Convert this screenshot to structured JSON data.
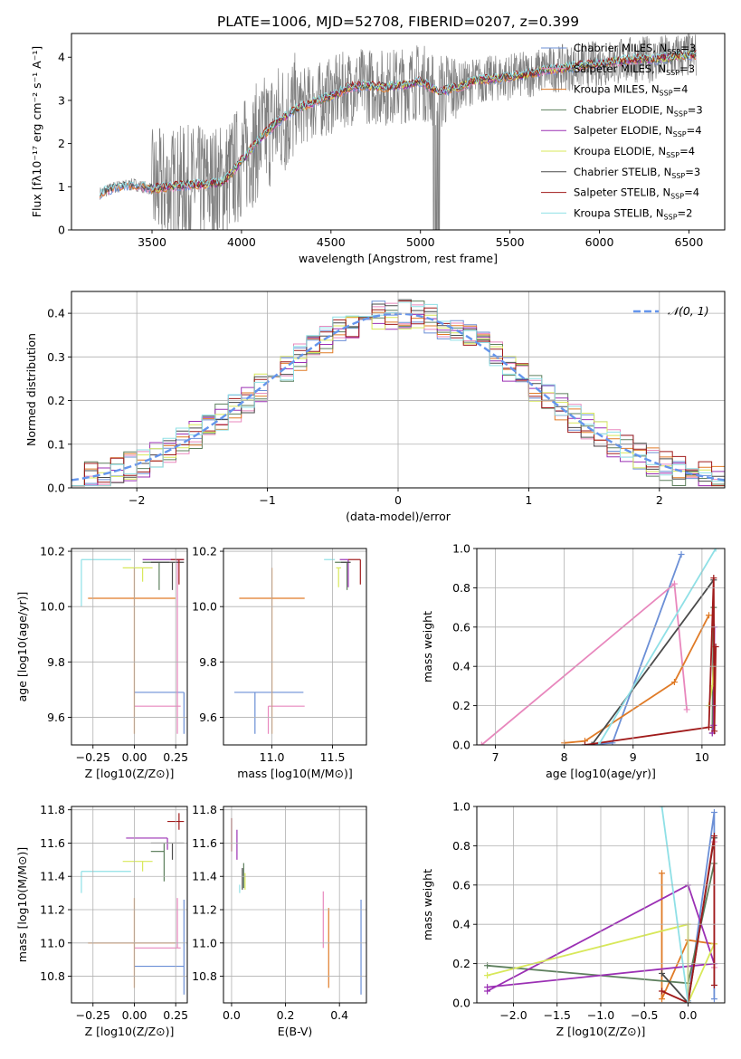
{
  "figure": {
    "title": "PLATE=1006, MJD=52708, FIBERID=0207, z=0.399"
  },
  "colors": {
    "Chabrier MILES": "#6b8fd6",
    "Salpeter MILES": "#e887bd",
    "Kroupa MILES": "#e07b27",
    "Chabrier ELODIE": "#5d7f5d",
    "Salpeter ELODIE": "#9b30b4",
    "Kroupa ELODIE": "#d8e85a",
    "Chabrier STELIB": "#4a4a4a",
    "Salpeter STELIB": "#a01a1a",
    "Kroupa STELIB": "#8fe0e6",
    "data": "#808080",
    "gaussian": "#6495ed"
  },
  "chart_data": [
    {
      "id": "spectrum",
      "type": "line",
      "title": "PLATE=1006, MJD=52708, FIBERID=0207, z=0.399",
      "xlabel": "wavelength [Angstrom, rest frame]",
      "ylabel": "Flux [fλ10⁻¹⁷ erg cm⁻² s⁻¹ A⁻¹]",
      "xlim": [
        3050,
        6700
      ],
      "ylim": [
        0,
        4.55
      ],
      "xticks": [
        "3500",
        "4000",
        "4500",
        "5000",
        "5500",
        "6000",
        "6500"
      ],
      "yticks": [
        "0",
        "1",
        "2",
        "3",
        "4"
      ],
      "grid": false,
      "legend_position": "top-right",
      "legend": [
        "Chabrier MILES, N_SSP=3",
        "Salpeter MILES, N_SSP=3",
        "Kroupa MILES, N_SSP=4",
        "Chabrier ELODIE, N_SSP=3",
        "Salpeter ELODIE, N_SSP=4",
        "Kroupa ELODIE, N_SSP=4",
        "Chabrier STELIB, N_SSP=3",
        "Salpeter STELIB, N_SSP=4",
        "Kroupa STELIB, N_SSP=2"
      ],
      "continuum_samples": {
        "x": [
          3210,
          3300,
          3400,
          3500,
          3600,
          3700,
          3800,
          3900,
          4000,
          4100,
          4200,
          4300,
          4400,
          4500,
          4600,
          4700,
          4800,
          4900,
          5000,
          5100,
          5200,
          5300,
          5400,
          5500,
          5600,
          5700,
          5800,
          5900,
          6000,
          6100,
          6200,
          6300,
          6400,
          6500,
          6540
        ],
        "y": [
          0.85,
          1.0,
          1.05,
          0.95,
          1.0,
          1.05,
          1.05,
          1.1,
          1.6,
          2.1,
          2.5,
          2.8,
          2.95,
          3.1,
          3.3,
          3.35,
          3.3,
          3.35,
          3.45,
          3.2,
          3.3,
          3.45,
          3.5,
          3.55,
          3.6,
          3.7,
          3.75,
          3.8,
          3.85,
          3.9,
          3.95,
          3.95,
          4.0,
          4.05,
          4.05
        ]
      }
    },
    {
      "id": "residuals",
      "type": "line",
      "xlabel": "(data-model)/error",
      "ylabel": "Normed distribution",
      "xlim": [
        -2.5,
        2.5
      ],
      "ylim": [
        0,
        0.45
      ],
      "xticks": [
        "−2",
        "−1",
        "0",
        "1",
        "2"
      ],
      "yticks": [
        "0.0",
        "0.1",
        "0.2",
        "0.3",
        "0.4"
      ],
      "grid": true,
      "legend_position": "top-right",
      "legend": [
        "𝒩(0, 1)"
      ],
      "bin_width": 0.1
    },
    {
      "id": "z-age",
      "type": "scatter",
      "xlabel": "Z [log10(Z/Z⊙)]",
      "ylabel": "age [log10(age/yr)]",
      "xlim": [
        -0.38,
        0.32
      ],
      "ylim": [
        9.5,
        10.21
      ],
      "xticks": [
        "−0.25",
        "0.00",
        "0.25"
      ],
      "yticks": [
        "9.6",
        "9.8",
        "10.0",
        "10.2"
      ],
      "grid": true,
      "points": [
        {
          "model": "Chabrier MILES",
          "x": 0.3,
          "y": 9.69,
          "xerr": [
            0.3,
            0.0
          ],
          "yerr": [
            0.15,
            0.0
          ]
        },
        {
          "model": "Salpeter MILES",
          "x": 0.26,
          "y": 9.64,
          "xerr": [
            0.26,
            0.02
          ],
          "yerr": [
            0.1,
            0.53
          ]
        },
        {
          "model": "Kroupa MILES",
          "x": 0.0,
          "y": 10.03,
          "xerr": [
            0.28,
            0.25
          ],
          "yerr": [
            0.49,
            0.11
          ]
        },
        {
          "model": "Chabrier ELODIE",
          "x": 0.15,
          "y": 10.16,
          "xerr": [
            0.1,
            0.06
          ],
          "yerr": [
            0.1,
            0.0
          ]
        },
        {
          "model": "Salpeter ELODIE",
          "x": 0.27,
          "y": 10.17,
          "xerr": [
            0.22,
            0.03
          ],
          "yerr": [
            0.0,
            0.0
          ]
        },
        {
          "model": "Kroupa ELODIE",
          "x": 0.05,
          "y": 10.14,
          "xerr": [
            0.12,
            0.06
          ],
          "yerr": [
            0.05,
            0.0
          ]
        },
        {
          "model": "Chabrier STELIB",
          "x": 0.23,
          "y": 10.16,
          "xerr": [
            0.13,
            0.07
          ],
          "yerr": [
            0.1,
            0.0
          ]
        },
        {
          "model": "Salpeter STELIB",
          "x": 0.27,
          "y": 10.17,
          "xerr": [
            0.05,
            0.03
          ],
          "yerr": [
            0.09,
            0.0
          ]
        },
        {
          "model": "Kroupa STELIB",
          "x": -0.32,
          "y": 10.17,
          "xerr": [
            0.0,
            0.3
          ],
          "yerr": [
            0.17,
            0.0
          ]
        }
      ]
    },
    {
      "id": "mass-age",
      "type": "scatter",
      "xlabel": "mass [log10(M/M⊙)]",
      "ylabel": "",
      "xlim": [
        10.6,
        11.78
      ],
      "ylim": [
        9.5,
        10.21
      ],
      "xticks": [
        "11.0",
        "11.5"
      ],
      "yticks": [
        "9.6",
        "9.8",
        "10.0",
        "10.2"
      ],
      "grid": true,
      "points": [
        {
          "model": "Chabrier MILES",
          "x": 10.86,
          "y": 9.69,
          "xerr": [
            0.17,
            0.4
          ],
          "yerr": [
            0.15,
            0.0
          ]
        },
        {
          "model": "Salpeter MILES",
          "x": 10.97,
          "y": 9.64,
          "xerr": [
            0.0,
            0.3
          ],
          "yerr": [
            0.1,
            0.0
          ]
        },
        {
          "model": "Kroupa MILES",
          "x": 11.0,
          "y": 10.03,
          "xerr": [
            0.27,
            0.27
          ],
          "yerr": [
            0.49,
            0.11
          ]
        },
        {
          "model": "Chabrier ELODIE",
          "x": 11.62,
          "y": 10.16,
          "xerr": [
            0.1,
            0.02
          ],
          "yerr": [
            0.1,
            0.0
          ]
        },
        {
          "model": "Salpeter ELODIE",
          "x": 11.63,
          "y": 10.17,
          "xerr": [
            0.07,
            0.0
          ],
          "yerr": [
            0.1,
            0.0
          ]
        },
        {
          "model": "Kroupa ELODIE",
          "x": 11.55,
          "y": 10.14,
          "xerr": [
            0.02,
            0.02
          ],
          "yerr": [
            0.07,
            0.0
          ]
        },
        {
          "model": "Chabrier STELIB",
          "x": 11.6,
          "y": 10.16,
          "xerr": [
            0.03,
            0.05
          ],
          "yerr": [
            0.0,
            0.0
          ]
        },
        {
          "model": "Salpeter STELIB",
          "x": 11.73,
          "y": 10.17,
          "xerr": [
            0.1,
            0.0
          ],
          "yerr": [
            0.09,
            0.0
          ]
        },
        {
          "model": "Kroupa STELIB",
          "x": 11.43,
          "y": 10.17,
          "xerr": [
            0.0,
            0.09
          ],
          "yerr": [
            0.0,
            0.0
          ]
        }
      ]
    },
    {
      "id": "age-massweight",
      "type": "line",
      "xlabel": "age [log10(age/yr)]",
      "ylabel": "mass weight",
      "xlim": [
        6.73,
        10.33
      ],
      "ylim": [
        0,
        1
      ],
      "xticks": [
        "7",
        "8",
        "9",
        "10"
      ],
      "yticks": [
        "0.0",
        "0.2",
        "0.4",
        "0.6",
        "0.8",
        "1.0"
      ],
      "grid": true,
      "series": [
        {
          "model": "Chabrier MILES",
          "x": [
            8.3,
            8.7,
            9.7
          ],
          "y": [
            0.0,
            0.01,
            0.97
          ]
        },
        {
          "model": "Salpeter MILES",
          "x": [
            6.8,
            9.6,
            9.78
          ],
          "y": [
            0.0,
            0.82,
            0.18
          ]
        },
        {
          "model": "Kroupa MILES",
          "x": [
            8.0,
            8.3,
            9.6,
            10.1
          ],
          "y": [
            0.01,
            0.02,
            0.32,
            0.66
          ]
        },
        {
          "model": "Chabrier ELODIE",
          "x": [
            10.15,
            10.17
          ],
          "y": [
            0.06,
            0.7
          ]
        },
        {
          "model": "Salpeter ELODIE",
          "x": [
            10.15,
            10.17,
            10.17,
            10.18
          ],
          "y": [
            0.06,
            0.1,
            0.2,
            0.6
          ]
        },
        {
          "model": "Kroupa ELODIE",
          "x": [
            10.1,
            10.15,
            10.17
          ],
          "y": [
            0.2,
            0.3,
            0.4
          ]
        },
        {
          "model": "Chabrier STELIB",
          "x": [
            8.4,
            10.17
          ],
          "y": [
            0.0,
            0.84
          ]
        },
        {
          "model": "Salpeter STELIB",
          "x": [
            8.3,
            10.1,
            10.17,
            10.18,
            10.2
          ],
          "y": [
            0.0,
            0.09,
            0.85,
            0.07,
            0.5
          ]
        },
        {
          "model": "Kroupa STELIB",
          "x": [
            8.5,
            10.2
          ],
          "y": [
            0.0,
            1.0
          ]
        }
      ]
    },
    {
      "id": "z-mass",
      "type": "scatter",
      "xlabel": "Z [log10(Z/Z⊙)]",
      "ylabel": "mass [log10(M/M⊙)]",
      "xlim": [
        -0.38,
        0.32
      ],
      "ylim": [
        10.64,
        11.82
      ],
      "xticks": [
        "−0.25",
        "0.00",
        "0.25"
      ],
      "yticks": [
        "10.8",
        "11.0",
        "11.2",
        "11.4",
        "11.6",
        "11.8"
      ],
      "grid": true,
      "points": [
        {
          "model": "Chabrier MILES",
          "x": 0.3,
          "y": 10.86,
          "xerr": [
            0.3,
            0.0
          ],
          "yerr": [
            0.17,
            0.4
          ]
        },
        {
          "model": "Salpeter MILES",
          "x": 0.26,
          "y": 10.97,
          "xerr": [
            0.26,
            0.02
          ],
          "yerr": [
            0.0,
            0.3
          ]
        },
        {
          "model": "Kroupa MILES",
          "x": 0.0,
          "y": 11.0,
          "xerr": [
            0.28,
            0.25
          ],
          "yerr": [
            0.27,
            0.27
          ]
        },
        {
          "model": "Chabrier ELODIE",
          "x": 0.18,
          "y": 11.55,
          "xerr": [
            0.08,
            0.0
          ],
          "yerr": [
            0.18,
            0.05
          ]
        },
        {
          "model": "Salpeter ELODIE",
          "x": 0.2,
          "y": 11.63,
          "xerr": [
            0.25,
            0.0
          ],
          "yerr": [
            0.07,
            0.0
          ]
        },
        {
          "model": "Kroupa ELODIE",
          "x": 0.05,
          "y": 11.49,
          "xerr": [
            0.12,
            0.06
          ],
          "yerr": [
            0.06,
            0.0
          ]
        },
        {
          "model": "Chabrier STELIB",
          "x": 0.23,
          "y": 11.6,
          "xerr": [
            0.13,
            0.07
          ],
          "yerr": [
            0.1,
            0.0
          ]
        },
        {
          "model": "Salpeter STELIB",
          "x": 0.27,
          "y": 11.73,
          "xerr": [
            0.07,
            0.03
          ],
          "yerr": [
            0.05,
            0.05
          ]
        },
        {
          "model": "Kroupa STELIB",
          "x": -0.32,
          "y": 11.43,
          "xerr": [
            0.0,
            0.3
          ],
          "yerr": [
            0.13,
            0.0
          ]
        }
      ]
    },
    {
      "id": "ebv-mass",
      "type": "scatter",
      "xlabel": "E(B-V)",
      "ylabel": "",
      "xlim": [
        -0.03,
        0.5
      ],
      "ylim": [
        10.64,
        11.82
      ],
      "xticks": [
        "0.0",
        "0.2",
        "0.4"
      ],
      "yticks": [
        "10.8",
        "11.0",
        "11.2",
        "11.4",
        "11.6",
        "11.8"
      ],
      "grid": true,
      "points": [
        {
          "model": "Chabrier MILES",
          "x": 0.48,
          "y": 10.86,
          "xerr": [
            0.0,
            0.0
          ],
          "yerr": [
            0.17,
            0.4
          ]
        },
        {
          "model": "Salpeter MILES",
          "x": 0.34,
          "y": 10.97,
          "xerr": [
            0.0,
            0.0
          ],
          "yerr": [
            0.0,
            0.34
          ]
        },
        {
          "model": "Kroupa MILES",
          "x": 0.36,
          "y": 11.0,
          "xerr": [
            0.0,
            0.0
          ],
          "yerr": [
            0.27,
            0.21
          ]
        },
        {
          "model": "Chabrier ELODIE",
          "x": 0.045,
          "y": 11.4,
          "xerr": [
            0.0,
            0.0
          ],
          "yerr": [
            0.07,
            0.08
          ]
        },
        {
          "model": "Salpeter ELODIE",
          "x": 0.02,
          "y": 11.6,
          "xerr": [
            0.0,
            0.0
          ],
          "yerr": [
            0.1,
            0.08
          ]
        },
        {
          "model": "Kroupa ELODIE",
          "x": 0.05,
          "y": 11.42,
          "xerr": [
            0.0,
            0.0
          ],
          "yerr": [
            0.1,
            0.0
          ]
        },
        {
          "model": "Chabrier STELIB",
          "x": 0.04,
          "y": 11.45,
          "xerr": [
            0.0,
            0.0
          ],
          "yerr": [
            0.13,
            0.0
          ]
        },
        {
          "model": "Salpeter STELIB",
          "x": 0.0,
          "y": 11.65,
          "xerr": [
            0.0,
            0.0
          ],
          "yerr": [
            0.1,
            0.1
          ]
        },
        {
          "model": "Kroupa STELIB",
          "x": 0.03,
          "y": 11.35,
          "xerr": [
            0.0,
            0.0
          ],
          "yerr": [
            0.05,
            0.0
          ]
        }
      ]
    },
    {
      "id": "z-massweight",
      "type": "line",
      "xlabel": "Z [log10(Z/Z⊙)]",
      "ylabel": "mass weight",
      "xlim": [
        -2.42,
        0.42
      ],
      "ylim": [
        0,
        1
      ],
      "xticks": [
        "−2.0",
        "−1.5",
        "−1.0",
        "−0.5",
        "0.0"
      ],
      "yticks": [
        "0.0",
        "0.2",
        "0.4",
        "0.6",
        "0.8",
        "1.0"
      ],
      "grid": true,
      "series": [
        {
          "model": "Chabrier MILES",
          "x": [
            0.0,
            0.3,
            0.3
          ],
          "y": [
            0.01,
            0.97,
            0.02
          ]
        },
        {
          "model": "Salpeter MILES",
          "x": [
            0.3,
            0.3
          ],
          "y": [
            0.82,
            0.18
          ]
        },
        {
          "model": "Kroupa MILES",
          "x": [
            -0.3,
            -0.3,
            0.0,
            0.3
          ],
          "y": [
            0.66,
            0.02,
            0.32,
            0.3
          ]
        },
        {
          "model": "Chabrier ELODIE",
          "x": [
            -2.3,
            0.0,
            0.3
          ],
          "y": [
            0.19,
            0.1,
            0.71
          ]
        },
        {
          "model": "Salpeter ELODIE",
          "x": [
            -2.3,
            0.0,
            0.3,
            -2.3
          ],
          "y": [
            0.06,
            0.6,
            0.2,
            0.08
          ]
        },
        {
          "model": "Kroupa ELODIE",
          "x": [
            -2.3,
            0.0,
            0.0,
            0.3
          ],
          "y": [
            0.14,
            0.4,
            0.0,
            0.3
          ]
        },
        {
          "model": "Chabrier STELIB",
          "x": [
            -0.3,
            0.0,
            0.3
          ],
          "y": [
            0.15,
            0.0,
            0.84
          ]
        },
        {
          "model": "Salpeter STELIB",
          "x": [
            -0.3,
            0.0,
            0.3,
            0.3
          ],
          "y": [
            0.06,
            0.0,
            0.85,
            0.09
          ]
        },
        {
          "model": "Kroupa STELIB",
          "x": [
            -0.3,
            0.0
          ],
          "y": [
            1.0,
            0.0
          ]
        }
      ]
    }
  ]
}
